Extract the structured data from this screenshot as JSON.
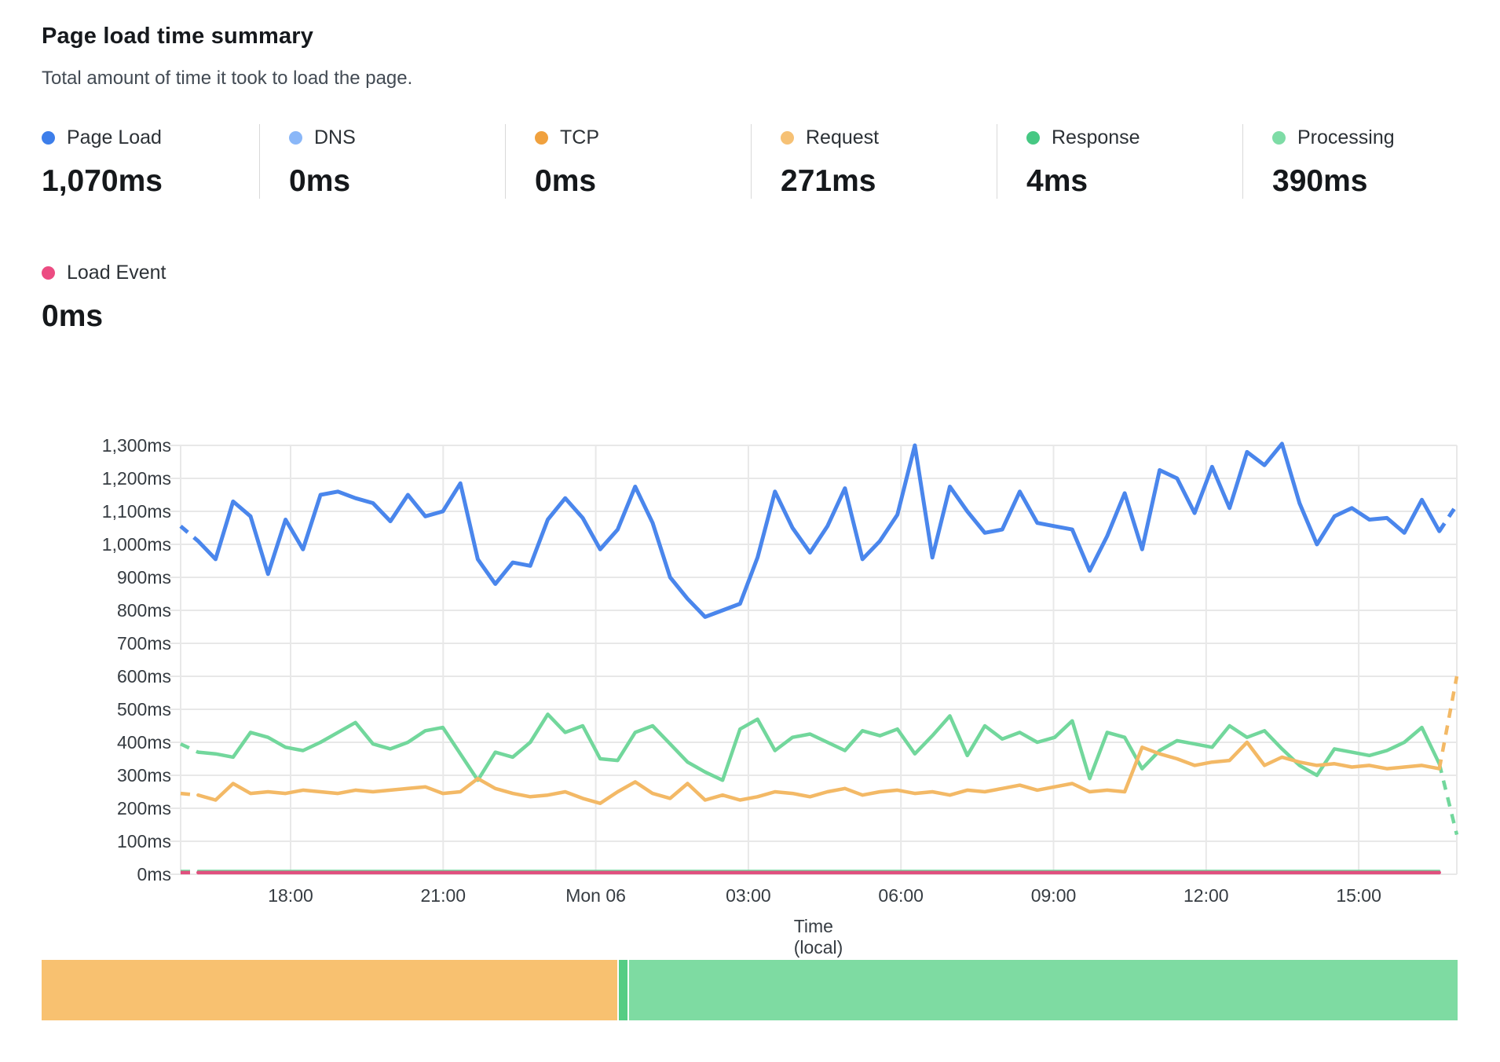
{
  "header": {
    "title": "Page load time summary",
    "subtitle": "Total amount of time it took to load the page."
  },
  "metrics": [
    {
      "label": "Page Load",
      "value": "1,070ms",
      "color": "#3d7eea"
    },
    {
      "label": "DNS",
      "value": "0ms",
      "color": "#8ab7f8"
    },
    {
      "label": "TCP",
      "value": "0ms",
      "color": "#f0a13e"
    },
    {
      "label": "Request",
      "value": "271ms",
      "color": "#f6c175"
    },
    {
      "label": "Response",
      "value": "4ms",
      "color": "#46c883"
    },
    {
      "label": "Processing",
      "value": "390ms",
      "color": "#7edca6"
    },
    {
      "label": "Load Event",
      "value": "0ms",
      "color": "#ec4c82"
    }
  ],
  "chart_data": {
    "type": "line",
    "title": "Page load time summary",
    "xlabel": "Time (local)",
    "ylabel": "",
    "ylim": [
      0,
      1300
    ],
    "y_tick_step": 100,
    "y_tick_suffix": "ms",
    "grid": true,
    "legend_position": "top",
    "x_tick_labels": [
      "18:00",
      "21:00",
      "Mon 06",
      "03:00",
      "06:00",
      "09:00",
      "12:00",
      "15:00"
    ],
    "x_note": "points sampled every 20 minutes over ~24 hours; first and last samples are provisional (dashed)",
    "series": [
      {
        "name": "Response",
        "color": "#6fd59a",
        "width": 3,
        "start_dashed": true,
        "end_dashed": false,
        "values": [
          10,
          10,
          10,
          10,
          10,
          10,
          10,
          10,
          10,
          10,
          10,
          10,
          10,
          10,
          10,
          10,
          10,
          10,
          10,
          10,
          10,
          10,
          10,
          10,
          10,
          10,
          10,
          10,
          10,
          10,
          10,
          10,
          10,
          10,
          10,
          10,
          10,
          10,
          10,
          10,
          10,
          10,
          10,
          10,
          10,
          10,
          10,
          10,
          10,
          10,
          10,
          10,
          10,
          10,
          10,
          10,
          10,
          10,
          10,
          10,
          10,
          10,
          10,
          10,
          10,
          10,
          10,
          10,
          10,
          10,
          10,
          10,
          10,
          10
        ]
      },
      {
        "name": "Processing",
        "color": "#72d79c",
        "width": 4.5,
        "start_dashed": true,
        "end_dashed": true,
        "values": [
          395,
          370,
          365,
          355,
          430,
          415,
          385,
          375,
          400,
          430,
          460,
          395,
          380,
          400,
          435,
          445,
          365,
          285,
          370,
          355,
          400,
          485,
          430,
          450,
          350,
          345,
          430,
          450,
          395,
          340,
          310,
          285,
          440,
          470,
          375,
          415,
          425,
          400,
          375,
          435,
          420,
          440,
          365,
          420,
          480,
          360,
          450,
          410,
          430,
          400,
          415,
          465,
          290,
          430,
          415,
          320,
          375,
          405,
          395,
          385,
          450,
          415,
          435,
          380,
          330,
          300,
          380,
          370,
          360,
          375,
          400,
          445,
          335,
          120
        ]
      },
      {
        "name": "Request",
        "color": "#f3b966",
        "width": 4.5,
        "start_dashed": true,
        "end_dashed": true,
        "values": [
          245,
          240,
          225,
          275,
          245,
          250,
          245,
          255,
          250,
          245,
          255,
          250,
          255,
          260,
          265,
          245,
          250,
          290,
          260,
          245,
          235,
          240,
          250,
          230,
          215,
          250,
          280,
          245,
          230,
          275,
          225,
          240,
          225,
          235,
          250,
          245,
          235,
          250,
          260,
          240,
          250,
          255,
          245,
          250,
          240,
          255,
          250,
          260,
          270,
          255,
          265,
          275,
          250,
          255,
          250,
          385,
          365,
          350,
          330,
          340,
          345,
          400,
          330,
          355,
          340,
          330,
          335,
          325,
          330,
          320,
          325,
          330,
          320,
          600
        ]
      },
      {
        "name": "Load Event",
        "color": "#e0507e",
        "width": 4.5,
        "start_dashed": true,
        "end_dashed": false,
        "values": [
          5,
          5,
          5,
          5,
          5,
          5,
          5,
          5,
          5,
          5,
          5,
          5,
          5,
          5,
          5,
          5,
          5,
          5,
          5,
          5,
          5,
          5,
          5,
          5,
          5,
          5,
          5,
          5,
          5,
          5,
          5,
          5,
          5,
          5,
          5,
          5,
          5,
          5,
          5,
          5,
          5,
          5,
          5,
          5,
          5,
          5,
          5,
          5,
          5,
          5,
          5,
          5,
          5,
          5,
          5,
          5,
          5,
          5,
          5,
          5,
          5,
          5,
          5,
          5,
          5,
          5,
          5,
          5,
          5,
          5,
          5,
          5,
          5,
          5
        ]
      },
      {
        "name": "Page Load",
        "color": "#4a86ec",
        "width": 5,
        "start_dashed": true,
        "end_dashed": true,
        "values": [
          1055,
          1010,
          955,
          1130,
          1085,
          910,
          1075,
          985,
          1150,
          1160,
          1140,
          1125,
          1070,
          1150,
          1085,
          1100,
          1185,
          955,
          880,
          945,
          935,
          1075,
          1140,
          1080,
          985,
          1045,
          1175,
          1065,
          900,
          835,
          780,
          800,
          820,
          960,
          1160,
          1050,
          975,
          1055,
          1170,
          955,
          1010,
          1090,
          1300,
          960,
          1175,
          1100,
          1035,
          1045,
          1160,
          1065,
          1055,
          1045,
          920,
          1025,
          1155,
          985,
          1225,
          1200,
          1095,
          1235,
          1110,
          1280,
          1240,
          1305,
          1125,
          1000,
          1085,
          1110,
          1075,
          1080,
          1035,
          1135,
          1040,
          1120
        ]
      }
    ]
  },
  "breakdown_bar": {
    "segments": [
      {
        "name": "Request",
        "ms": 271,
        "color": "#f8c170"
      },
      {
        "name": "Response",
        "ms": 4,
        "color": "#55cd84"
      },
      {
        "name": "Processing",
        "ms": 390,
        "color": "#7edba2"
      }
    ]
  },
  "colors": {
    "grid": "#e8e8e8",
    "divider": "#d9d9d9",
    "axis_text": "#363c42"
  }
}
